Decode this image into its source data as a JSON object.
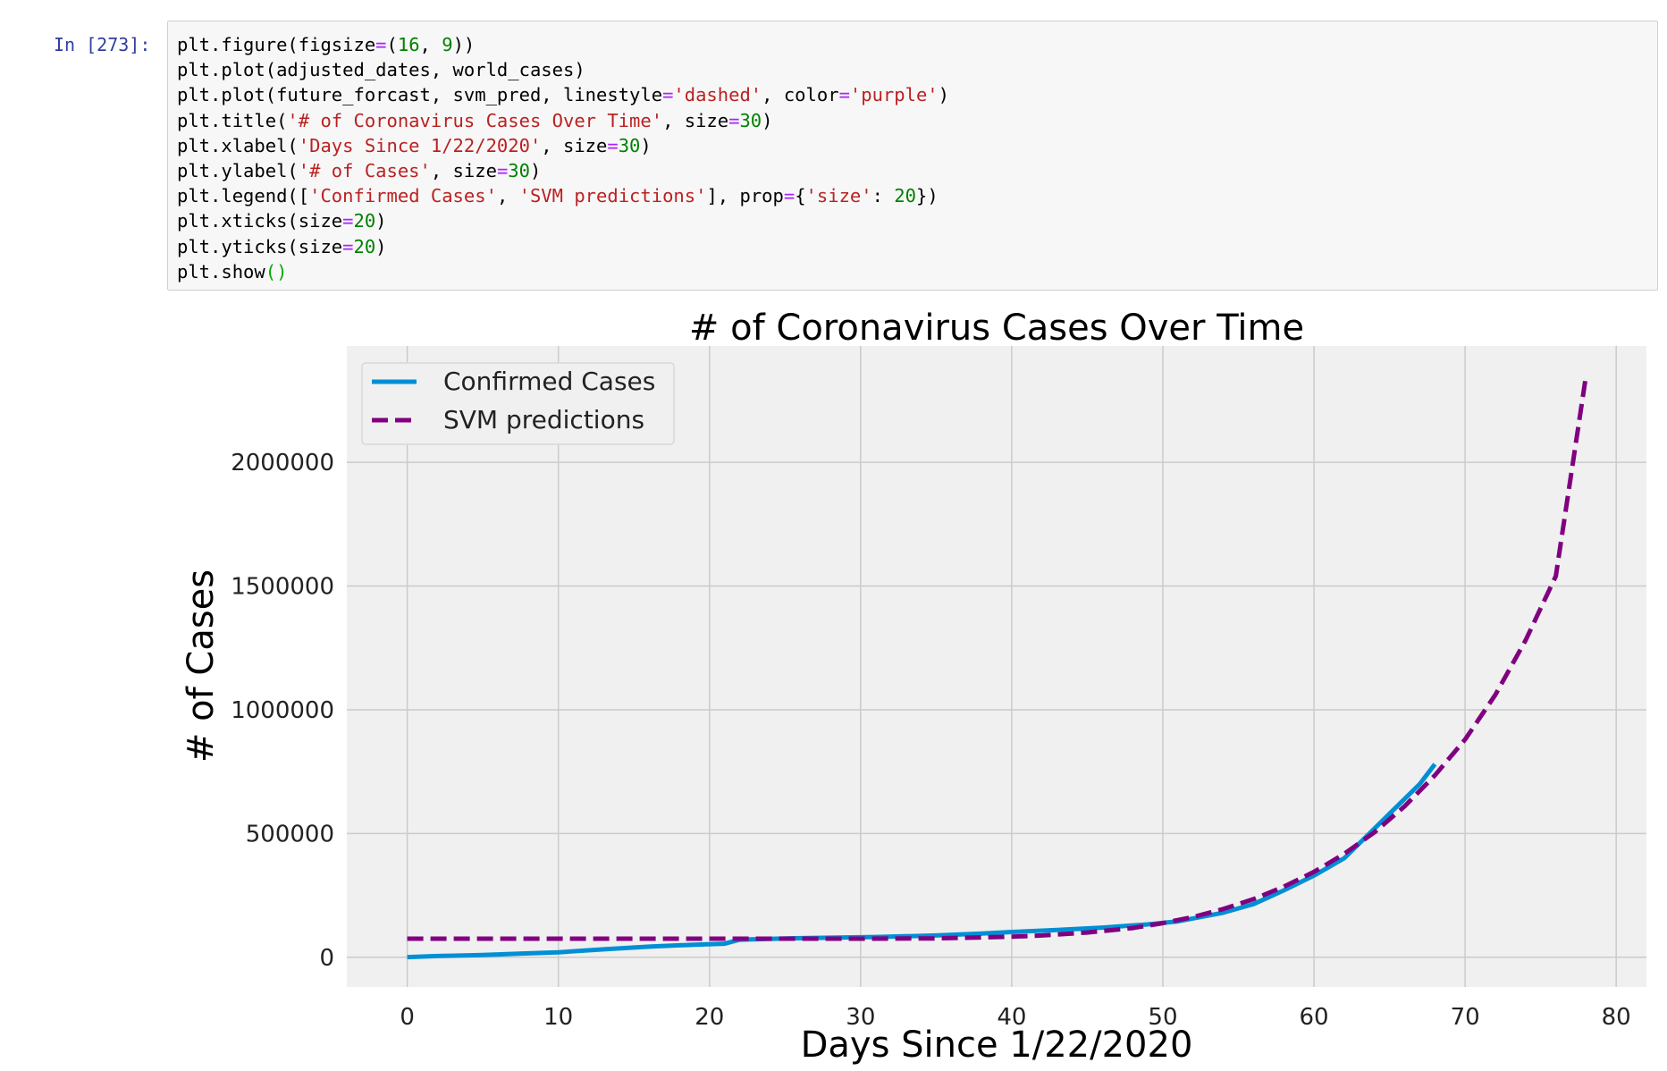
{
  "cell": {
    "prompt": "In [273]:",
    "code_lines": [
      [
        {
          "t": "plt.figure(figsize"
        },
        {
          "t": "=",
          "c": "op"
        },
        {
          "t": "("
        },
        {
          "t": "16",
          "c": "num"
        },
        {
          "t": ", "
        },
        {
          "t": "9",
          "c": "num"
        },
        {
          "t": "))"
        }
      ],
      [
        {
          "t": "plt.plot(adjusted_dates, world_cases)"
        }
      ],
      [
        {
          "t": "plt.plot(future_forcast, svm_pred, linestyle"
        },
        {
          "t": "=",
          "c": "op"
        },
        {
          "t": "'dashed'",
          "c": "str"
        },
        {
          "t": ", color"
        },
        {
          "t": "=",
          "c": "op"
        },
        {
          "t": "'purple'",
          "c": "str"
        },
        {
          "t": ")"
        }
      ],
      [
        {
          "t": "plt.title("
        },
        {
          "t": "'# of Coronavirus Cases Over Time'",
          "c": "str"
        },
        {
          "t": ", size"
        },
        {
          "t": "=",
          "c": "op"
        },
        {
          "t": "30",
          "c": "num"
        },
        {
          "t": ")"
        }
      ],
      [
        {
          "t": "plt.xlabel("
        },
        {
          "t": "'Days Since 1/22/2020'",
          "c": "str"
        },
        {
          "t": ", size"
        },
        {
          "t": "=",
          "c": "op"
        },
        {
          "t": "30",
          "c": "num"
        },
        {
          "t": ")"
        }
      ],
      [
        {
          "t": "plt.ylabel("
        },
        {
          "t": "'# of Cases'",
          "c": "str"
        },
        {
          "t": ", size"
        },
        {
          "t": "=",
          "c": "op"
        },
        {
          "t": "30",
          "c": "num"
        },
        {
          "t": ")"
        }
      ],
      [
        {
          "t": "plt.legend(["
        },
        {
          "t": "'Confirmed Cases'",
          "c": "str"
        },
        {
          "t": ", "
        },
        {
          "t": "'SVM predictions'",
          "c": "str"
        },
        {
          "t": "], prop"
        },
        {
          "t": "=",
          "c": "op"
        },
        {
          "t": "{"
        },
        {
          "t": "'size'",
          "c": "str"
        },
        {
          "t": ": "
        },
        {
          "t": "20",
          "c": "num"
        },
        {
          "t": "})"
        }
      ],
      [
        {
          "t": "plt.xticks(size"
        },
        {
          "t": "=",
          "c": "op"
        },
        {
          "t": "20",
          "c": "num"
        },
        {
          "t": ")"
        }
      ],
      [
        {
          "t": "plt.yticks(size"
        },
        {
          "t": "=",
          "c": "op"
        },
        {
          "t": "20",
          "c": "num"
        },
        {
          "t": ")"
        }
      ],
      [
        {
          "t": "plt.show"
        },
        {
          "t": "()",
          "c": "par"
        }
      ]
    ]
  },
  "chart_data": {
    "type": "line",
    "title": "# of Coronavirus Cases Over Time",
    "xlabel": "Days Since 1/22/2020",
    "ylabel": "# of Cases",
    "xlim": [
      -4,
      82
    ],
    "ylim": [
      -120000,
      2470000
    ],
    "xticks": [
      0,
      10,
      20,
      30,
      40,
      50,
      60,
      70,
      80
    ],
    "xtick_labels": [
      "0",
      "10",
      "20",
      "30",
      "40",
      "50",
      "60",
      "70",
      "80"
    ],
    "yticks": [
      0,
      500000,
      1000000,
      1500000,
      2000000
    ],
    "ytick_labels": [
      "0",
      "500000",
      "1000000",
      "1500000",
      "2000000"
    ],
    "grid": true,
    "legend_position": "top-left",
    "series": [
      {
        "name": "Confirmed Cases",
        "color": "#008fd5",
        "style": "solid",
        "x": [
          0,
          2,
          5,
          8,
          10,
          13,
          16,
          19,
          21,
          22,
          25,
          28,
          31,
          35,
          38,
          40,
          43,
          46,
          49,
          51,
          54,
          56,
          58,
          60,
          62,
          63,
          65,
          67,
          68
        ],
        "y": [
          600,
          5000,
          9000,
          16000,
          20000,
          32000,
          43000,
          51000,
          55000,
          71000,
          76000,
          79000,
          82000,
          88000,
          96000,
          102000,
          110000,
          120000,
          133000,
          145000,
          180000,
          215000,
          270000,
          330000,
          400000,
          460000,
          580000,
          700000,
          780000
        ]
      },
      {
        "name": "SVM predictions",
        "color": "#800080",
        "style": "dashed",
        "x": [
          0,
          5,
          10,
          15,
          20,
          25,
          30,
          35,
          40,
          42,
          45,
          48,
          50,
          52,
          54,
          56,
          58,
          60,
          62,
          64,
          66,
          68,
          70,
          72,
          74,
          76,
          78
        ],
        "y": [
          75000,
          75000,
          75000,
          75000,
          75000,
          75000,
          75000,
          76000,
          83000,
          88000,
          100000,
          118000,
          138000,
          163000,
          195000,
          235000,
          285000,
          345000,
          418000,
          505000,
          610000,
          735000,
          880000,
          1060000,
          1280000,
          1540000,
          2350000
        ]
      }
    ]
  },
  "colors": {
    "plot_background": "#f0f0f0",
    "grid": "#cbcbcb",
    "code_background": "#f7f7f7"
  }
}
